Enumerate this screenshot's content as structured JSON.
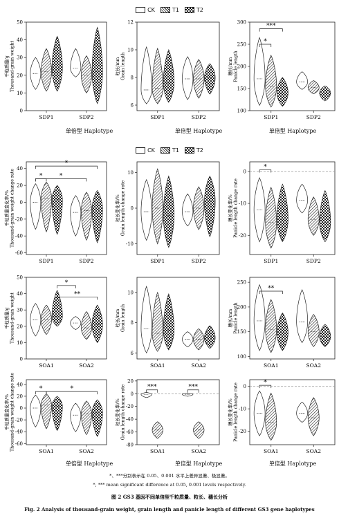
{
  "legend": [
    "CK",
    "T1",
    "T2"
  ],
  "group_label": "单倍型  Haplotype",
  "footnotes": [
    "*、***分别表示在 0.05、0.001 水平上差异显著、极显著。",
    "*, *** mean significant difference at 0.05, 0.001 levels respectively."
  ],
  "caption": {
    "cn": "图 2   GS3 基因不同单倍型千粒质量、粒长、穗长分析",
    "en": "Fig. 2    Analysis of thousand-grain weight, grain length and panicle length of different GS3 gene haplotypes"
  },
  "colors": {
    "ink": "#222222",
    "ck_fill": "#ffffff",
    "dashed_ref": "#999999"
  },
  "chart_data": [
    {
      "type": "violin",
      "id": "tgw-sdp",
      "ylabel": "千粒质量/g\nThousand-grain weight",
      "categories": [
        "SDP1",
        "SDP2"
      ],
      "yticks": [
        0,
        10,
        20,
        30,
        40,
        50
      ],
      "ylim": [
        0,
        50
      ],
      "series": [
        {
          "name": "CK",
          "values": [
            [
              12,
              19,
              21,
              23,
              30
            ],
            [
              19,
              21,
              24,
              27,
              35
            ]
          ]
        },
        {
          "name": "T1",
          "values": [
            [
              11,
              17,
              22,
              26,
              35
            ],
            [
              10,
              16,
              20,
              24,
              31
            ]
          ]
        },
        {
          "name": "T2",
          "values": [
            [
              11,
              19,
              24,
              28,
              42
            ],
            [
              4,
              13,
              22,
              28,
              47
            ]
          ]
        }
      ],
      "brackets": []
    },
    {
      "type": "violin",
      "id": "gl-sdp",
      "ylabel": "粒长/mm\nGrain length",
      "categories": [
        "SDP1",
        "SDP2"
      ],
      "yticks": [
        6,
        8,
        10,
        12
      ],
      "ylim": [
        5.6,
        12
      ],
      "series": [
        {
          "name": "CK",
          "values": [
            [
              6.1,
              6.7,
              7.1,
              7.9,
              10.2
            ],
            [
              6.4,
              7.2,
              7.9,
              8.6,
              9.5
            ]
          ]
        },
        {
          "name": "T1",
          "values": [
            [
              6.1,
              6.8,
              7.2,
              8.2,
              10.1
            ],
            [
              6.5,
              7.3,
              7.9,
              8.5,
              9.3
            ]
          ]
        },
        {
          "name": "T2",
          "values": [
            [
              6.2,
              7.0,
              7.6,
              8.5,
              10.0
            ],
            [
              6.8,
              7.5,
              8.0,
              8.5,
              9.0
            ]
          ]
        }
      ],
      "brackets": []
    },
    {
      "type": "violin",
      "id": "pl-sdp",
      "ylabel": "穗长/mm\nPanicle length",
      "categories": [
        "SDP1",
        "SDP2"
      ],
      "yticks": [
        100,
        150,
        200,
        250,
        300
      ],
      "ylim": [
        100,
        300
      ],
      "series": [
        {
          "name": "CK",
          "values": [
            [
              112,
              150,
              172,
              200,
              265
            ],
            [
              148,
              158,
              165,
              175,
              188
            ]
          ]
        },
        {
          "name": "T1",
          "values": [
            [
              108,
              138,
              155,
              172,
              225
            ],
            [
              138,
              148,
              152,
              160,
              168
            ]
          ]
        },
        {
          "name": "T2",
          "values": [
            [
              110,
              128,
              140,
              150,
              175
            ],
            [
              122,
              132,
              140,
              146,
              156
            ]
          ]
        }
      ],
      "brackets": [
        {
          "cat": 0,
          "from": 0,
          "to": 1,
          "label": "*",
          "y": 250
        },
        {
          "cat": 0,
          "from": 0,
          "to": 2,
          "label": "***",
          "y": 285
        }
      ]
    },
    {
      "type": "violin",
      "id": "tgw-chg-sdp",
      "ylabel": "千粒质量变化率/%\nThousand-grain weight change rate",
      "categories": [
        "SDP1",
        "SDP2"
      ],
      "yticks": [
        -60,
        -40,
        -20,
        0,
        20,
        40
      ],
      "ylim": [
        -62,
        48
      ],
      "zero_line": false,
      "series": [
        {
          "name": "CK",
          "values": [
            [
              -32,
              -8,
              0,
              8,
              22
            ],
            [
              -40,
              -25,
              -12,
              -2,
              8
            ]
          ]
        },
        {
          "name": "T1",
          "values": [
            [
              -35,
              -4,
              5,
              12,
              24
            ],
            [
              -45,
              -28,
              -10,
              0,
              12
            ]
          ]
        },
        {
          "name": "T2",
          "values": [
            [
              -38,
              -6,
              3,
              10,
              20
            ],
            [
              -48,
              -30,
              -8,
              2,
              14
            ]
          ]
        }
      ],
      "brackets": [
        {
          "type": "within",
          "cat": 0,
          "from": 0,
          "to": 1,
          "label": "*",
          "y": 28
        },
        {
          "type": "across",
          "fromCat": 0,
          "fromS": 0,
          "toCat": 1,
          "toS": 1,
          "label": "*",
          "y": 28
        },
        {
          "type": "across",
          "fromCat": 0,
          "fromS": 0,
          "toCat": 1,
          "toS": 2,
          "label": "*",
          "y": 43
        }
      ]
    },
    {
      "type": "violin",
      "id": "gl-chg-sdp",
      "ylabel": "粒长变化率/%\nGrain length change rate",
      "categories": [
        "SDP1",
        "SDP2"
      ],
      "yticks": [
        -10,
        0,
        10
      ],
      "ylim": [
        -13,
        13
      ],
      "series": [
        {
          "name": "CK",
          "values": [
            [
              -9,
              -4,
              -1,
              2,
              8
            ],
            [
              -5,
              -3,
              -1,
              0,
              4
            ]
          ]
        },
        {
          "name": "T1",
          "values": [
            [
              -10,
              -5,
              0,
              3,
              11
            ],
            [
              -6,
              -3,
              0,
              3,
              6
            ]
          ]
        },
        {
          "name": "T2",
          "values": [
            [
              -11,
              -6,
              -2,
              2,
              9
            ],
            [
              -8,
              -3,
              2,
              5,
              9
            ]
          ]
        }
      ],
      "brackets": []
    },
    {
      "type": "violin",
      "id": "pl-chg-sdp",
      "ylabel": "穗长变化率/%\nPanicle length change rate",
      "categories": [
        "SDP1",
        "SDP2"
      ],
      "yticks": [
        -20,
        -10,
        0
      ],
      "ylim": [
        -26,
        3
      ],
      "zero_line": true,
      "series": [
        {
          "name": "CK",
          "values": [
            [
              -22,
              -16,
              -12,
              -8,
              -2
            ],
            [
              -13,
              -11,
              -9,
              -7,
              -4
            ]
          ]
        },
        {
          "name": "T1",
          "values": [
            [
              -24,
              -20,
              -16,
              -12,
              -5
            ],
            [
              -20,
              -17,
              -15,
              -12,
              -8
            ]
          ]
        },
        {
          "name": "T2",
          "values": [
            [
              -22,
              -18,
              -15,
              -11,
              -4
            ],
            [
              -22,
              -19,
              -16,
              -12,
              -6
            ]
          ]
        }
      ],
      "brackets": [
        {
          "cat": 0,
          "from": 0,
          "to": 1,
          "label": "*",
          "y": 0.5
        }
      ]
    },
    {
      "type": "violin",
      "id": "tgw-soa",
      "ylabel": "千粒质量/g\nThousand-grain weight",
      "categories": [
        "SOA1",
        "SOA2"
      ],
      "yticks": [
        0,
        10,
        20,
        30,
        40,
        50
      ],
      "ylim": [
        0,
        50
      ],
      "series": [
        {
          "name": "CK",
          "values": [
            [
              14,
              20,
              24,
              29,
              34
            ],
            [
              18,
              20,
              22,
              24,
              26
            ]
          ]
        },
        {
          "name": "T1",
          "values": [
            [
              15,
              21,
              24,
              28,
              33
            ],
            [
              12,
              16,
              19,
              23,
              29
            ]
          ]
        },
        {
          "name": "T2",
          "values": [
            [
              20,
              24,
              26,
              30,
              42
            ],
            [
              10,
              16,
              21,
              26,
              33
            ]
          ]
        }
      ],
      "brackets": [
        {
          "type": "across",
          "fromCat": 0,
          "fromS": 2,
          "toCat": 1,
          "toS": 2,
          "label": "**",
          "y": 38
        },
        {
          "type": "across",
          "fromCat": 0,
          "fromS": 2,
          "toCat": 1,
          "toS": 0,
          "label": "*",
          "y": 45
        }
      ]
    },
    {
      "type": "violin",
      "id": "gl-soa",
      "ylabel": "粒长/mm\nGrain length",
      "categories": [
        "SOA1",
        "SOA2"
      ],
      "yticks": [
        6,
        8,
        10
      ],
      "ylim": [
        5.6,
        11
      ],
      "series": [
        {
          "name": "CK",
          "values": [
            [
              6.0,
              6.9,
              7.6,
              8.6,
              10.4
            ],
            [
              6.4,
              6.7,
              6.9,
              7.1,
              7.4
            ]
          ]
        },
        {
          "name": "T1",
          "values": [
            [
              6.1,
              6.8,
              7.3,
              8.3,
              10.0
            ],
            [
              6.2,
              6.6,
              6.9,
              7.2,
              7.6
            ]
          ]
        },
        {
          "name": "T2",
          "values": [
            [
              6.2,
              6.9,
              7.5,
              8.4,
              9.9
            ],
            [
              6.3,
              6.7,
              7.0,
              7.3,
              7.8
            ]
          ]
        }
      ],
      "brackets": []
    },
    {
      "type": "violin",
      "id": "pl-soa",
      "ylabel": "穗长/mm\nPanicle length",
      "categories": [
        "SOA1",
        "SOA2"
      ],
      "yticks": [
        100,
        150,
        200,
        250
      ],
      "ylim": [
        95,
        260
      ],
      "series": [
        {
          "name": "CK",
          "values": [
            [
              112,
              150,
              172,
              195,
              245
            ],
            [
              128,
              150,
              170,
              195,
              235
            ]
          ]
        },
        {
          "name": "T1",
          "values": [
            [
              108,
              140,
              155,
              172,
              215
            ],
            [
              120,
              140,
              150,
              162,
              185
            ]
          ]
        },
        {
          "name": "T2",
          "values": [
            [
              112,
              132,
              148,
              160,
              188
            ],
            [
              120,
              132,
              140,
              150,
              165
            ]
          ]
        }
      ],
      "brackets": [
        {
          "cat": 0,
          "from": 0,
          "to": 2,
          "label": "**",
          "y": 232
        }
      ]
    },
    {
      "type": "violin",
      "id": "tgw-chg-soa",
      "ylabel": "千粒质量变化率/%\nThousand-grain weight change rate",
      "categories": [
        "SOA1",
        "SOA2"
      ],
      "yticks": [
        -60,
        -40,
        -20,
        0,
        20,
        40
      ],
      "ylim": [
        -62,
        48
      ],
      "series": [
        {
          "name": "CK",
          "values": [
            [
              -32,
              -8,
              0,
              8,
              22
            ],
            [
              -40,
              -25,
              -12,
              -2,
              8
            ]
          ]
        },
        {
          "name": "T1",
          "values": [
            [
              -35,
              -4,
              5,
              12,
              24
            ],
            [
              -45,
              -28,
              -10,
              0,
              12
            ]
          ]
        },
        {
          "name": "T2",
          "values": [
            [
              -38,
              -6,
              3,
              10,
              20
            ],
            [
              -48,
              -30,
              -8,
              2,
              14
            ]
          ]
        }
      ],
      "brackets": [
        {
          "type": "within",
          "cat": 0,
          "from": 0,
          "to": 1,
          "label": "*",
          "y": 28
        },
        {
          "type": "across",
          "fromCat": 0,
          "fromS": 1,
          "toCat": 1,
          "toS": 2,
          "label": "*",
          "y": 28
        }
      ]
    },
    {
      "type": "violin",
      "id": "gl-chg-soa",
      "ylabel": "粒长变化率/%\nGrain length change rate",
      "categories": [
        "SOA1",
        "SOA2"
      ],
      "yticks": [
        -80,
        -60,
        -40,
        -20,
        0,
        20
      ],
      "ylim": [
        -80,
        22
      ],
      "zero_line": true,
      "series": [
        {
          "name": "CK",
          "values": [
            [
              -6,
              -3,
              -1,
              0,
              2
            ],
            [
              -4,
              -2,
              -1,
              0,
              1
            ]
          ]
        },
        {
          "name": "T1",
          "values": [
            [
              -70,
              -62,
              -57,
              -52,
              -44
            ],
            [
              -70,
              -62,
              -57,
              -52,
              -44
            ]
          ]
        },
        {
          "name": "T2",
          "values": [
            [
              null
            ],
            [
              null
            ]
          ]
        }
      ],
      "brackets": [
        {
          "cat": 0,
          "from": 0,
          "to": 1,
          "label": "***",
          "y": 6
        },
        {
          "cat": 1,
          "from": 0,
          "to": 1,
          "label": "***",
          "y": 6
        }
      ],
      "skip_t2": true
    },
    {
      "type": "violin",
      "id": "pl-chg-soa",
      "ylabel": "穗长变化率/%\nPanicle length change rate",
      "categories": [
        "SOA1",
        "SOA2"
      ],
      "yticks": [
        -20,
        -10,
        0
      ],
      "ylim": [
        -26,
        3
      ],
      "zero_line": true,
      "series": [
        {
          "name": "CK",
          "values": [
            [
              -22,
              -16,
              -12,
              -8,
              -2
            ],
            [
              -16,
              -14,
              -12,
              -10,
              -7
            ]
          ]
        },
        {
          "name": "T1",
          "values": [
            [
              -24,
              -20,
              -16,
              -11,
              -3
            ],
            [
              -22,
              -18,
              -14,
              -9,
              -5
            ]
          ]
        },
        {
          "name": "T2",
          "values": [
            [
              null
            ],
            [
              null
            ]
          ]
        }
      ],
      "brackets": [
        {
          "cat": 0,
          "from": 0,
          "to": 1,
          "label": "*",
          "y": 0.5
        }
      ],
      "skip_t2": true
    }
  ]
}
